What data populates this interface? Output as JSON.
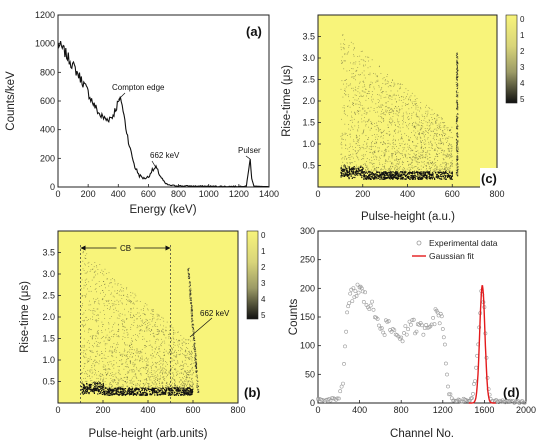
{
  "chart_data": [
    {
      "panel": "(a)",
      "type": "line",
      "xlabel": "Energy (keV)",
      "ylabel": "Counts/keV",
      "xlim": [
        0,
        1400
      ],
      "ylim": [
        0,
        1200
      ],
      "xticks": [
        0,
        200,
        400,
        600,
        800,
        1000,
        1200,
        1400
      ],
      "yticks": [
        0,
        200,
        400,
        600,
        800,
        1000,
        1200
      ],
      "x": [
        0,
        40,
        80,
        120,
        160,
        200,
        240,
        280,
        320,
        360,
        400,
        420,
        450,
        480,
        510,
        540,
        570,
        600,
        620,
        650,
        680,
        710,
        740,
        800,
        900,
        1000,
        1100,
        1200,
        1250,
        1265,
        1275,
        1285,
        1300,
        1400
      ],
      "y": [
        1000,
        950,
        880,
        810,
        740,
        660,
        570,
        500,
        470,
        490,
        590,
        610,
        420,
        260,
        140,
        80,
        60,
        70,
        110,
        135,
        75,
        25,
        12,
        8,
        6,
        5,
        4,
        4,
        8,
        120,
        195,
        60,
        6,
        2
      ],
      "annotations": [
        {
          "text": "Compton edge",
          "at_x": 400,
          "at_y": 610
        },
        {
          "text": "662 keV",
          "at_x": 650,
          "at_y": 135
        },
        {
          "text": "Pulser",
          "at_x": 1275,
          "at_y": 195
        }
      ]
    },
    {
      "panel": "(c)",
      "type": "heatmap",
      "xlabel": "Pulse-height (a.u.)",
      "ylabel": "Rise-time (μs)",
      "xlim": [
        0,
        800
      ],
      "ylim": [
        0,
        4
      ],
      "xticks": [
        0,
        200,
        400,
        600,
        800
      ],
      "yticks": [
        0.5,
        1.0,
        1.5,
        2.0,
        2.5,
        3.0,
        3.5
      ],
      "colorbar": {
        "ticks": [
          "0",
          "1",
          "2",
          "3",
          "4",
          "5"
        ],
        "placement": "right"
      },
      "background": "#F8F47A",
      "band_rise_time": 0.28,
      "band_x_range": [
        100,
        600
      ],
      "cloud_max_rise_time": 3.6,
      "line_662_x": 620
    },
    {
      "panel": "(b)",
      "type": "heatmap",
      "xlabel": "Pulse-height (arb.units)",
      "ylabel": "Rise-time (μs)",
      "xlim": [
        0,
        800
      ],
      "ylim": [
        0,
        4
      ],
      "xticks": [
        0,
        200,
        400,
        600,
        800
      ],
      "yticks": [
        0.5,
        1.0,
        1.5,
        2.0,
        2.5,
        3.0,
        3.5
      ],
      "colorbar": {
        "ticks": [
          "0",
          "1",
          "2",
          "3",
          "4",
          "5"
        ],
        "placement": "right"
      },
      "background": "#F8F47A",
      "band_rise_time": 0.28,
      "band_x_range": [
        100,
        600
      ],
      "cb_region": [
        100,
        500
      ],
      "annotations": [
        {
          "text": "CB"
        },
        {
          "text": "662 keV"
        }
      ]
    },
    {
      "panel": "(d)",
      "type": "scatter",
      "xlabel": "Channel No.",
      "ylabel": "Counts",
      "xlim": [
        0,
        2000
      ],
      "ylim": [
        0,
        300
      ],
      "xticks": [
        0,
        400,
        800,
        1200,
        1600,
        2000
      ],
      "yticks": [
        0,
        50,
        100,
        150,
        200,
        250,
        300
      ],
      "legend": "top-right",
      "series": [
        {
          "name": "Experimental data",
          "style": "open-circles",
          "x": [
            0,
            40,
            80,
            120,
            160,
            200,
            240,
            260,
            280,
            300,
            320,
            350,
            380,
            410,
            440,
            480,
            520,
            560,
            600,
            640,
            680,
            720,
            760,
            800,
            840,
            880,
            920,
            960,
            1000,
            1040,
            1080,
            1120,
            1150,
            1180,
            1200,
            1220,
            1240,
            1260,
            1300,
            1350,
            1400,
            1450,
            1480,
            1500,
            1520,
            1540,
            1560,
            1580,
            1600,
            1620,
            1640,
            1660,
            1700,
            1800,
            1900,
            2000
          ],
          "y": [
            5,
            6,
            4,
            5,
            8,
            10,
            40,
            90,
            150,
            175,
            185,
            190,
            200,
            195,
            185,
            175,
            165,
            150,
            140,
            130,
            135,
            125,
            120,
            115,
            125,
            130,
            135,
            128,
            130,
            135,
            145,
            150,
            155,
            150,
            140,
            100,
            50,
            15,
            5,
            4,
            5,
            4,
            10,
            30,
            60,
            110,
            170,
            205,
            160,
            80,
            20,
            5,
            4,
            3,
            2,
            2
          ]
        },
        {
          "name": "Gaussian fit",
          "style": "line",
          "color": "#E41A1C",
          "mean": 1580,
          "sigma": 25,
          "peak": 205
        }
      ]
    }
  ]
}
